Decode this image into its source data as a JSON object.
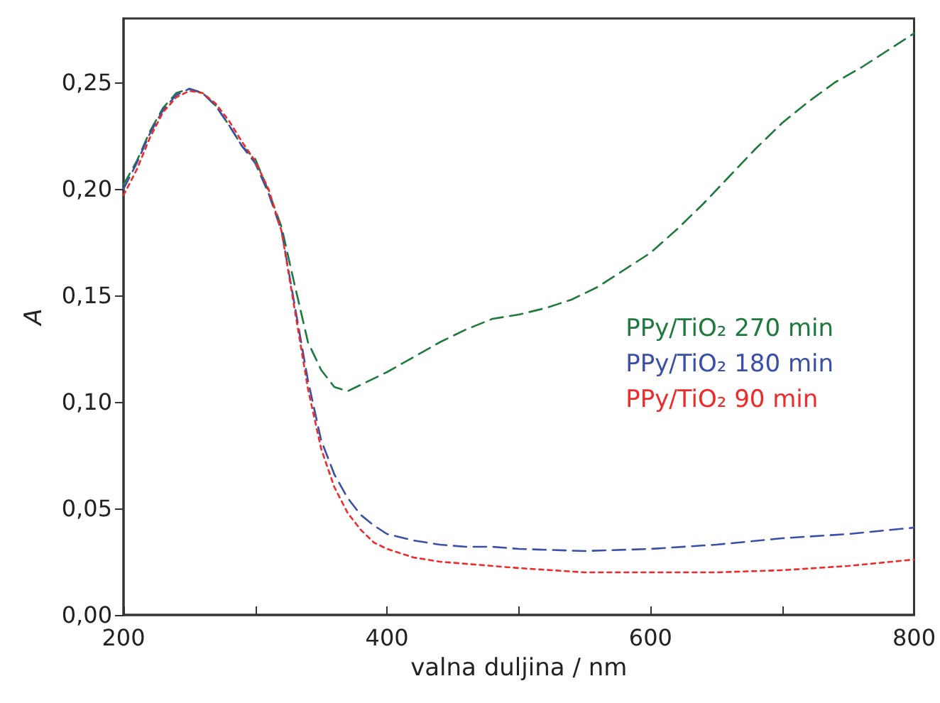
{
  "chart_data": {
    "type": "line",
    "xlabel": "valna duljina / nm",
    "ylabel": "A",
    "xlim": [
      200,
      800
    ],
    "ylim": [
      0,
      0.28
    ],
    "xticks": [
      200,
      {
        "value": 300,
        "label": null
      },
      400,
      {
        "value": 500,
        "label": null
      },
      600,
      {
        "value": 700,
        "label": null
      },
      800
    ],
    "yticks": [
      {
        "value": 0,
        "label": "0,00"
      },
      {
        "value": 0.05,
        "label": "0,05"
      },
      {
        "value": 0.1,
        "label": "0,10"
      },
      {
        "value": 0.15,
        "label": "0,15"
      },
      {
        "value": 0.2,
        "label": "0,20"
      },
      {
        "value": 0.25,
        "label": "0,25"
      }
    ],
    "grid": false,
    "legend": "right",
    "marker": "none",
    "series": [
      {
        "name": "PPy/TiO₂ 270 min",
        "color": "#1e7a3c",
        "line_style": "dashed",
        "x": [
          200,
          210,
          220,
          230,
          240,
          250,
          260,
          270,
          280,
          290,
          300,
          310,
          320,
          328,
          340,
          350,
          360,
          370,
          380,
          400,
          420,
          440,
          460,
          480,
          500,
          520,
          540,
          560,
          580,
          600,
          620,
          640,
          660,
          680,
          700,
          720,
          740,
          760,
          780,
          800
        ],
        "values": [
          0.202,
          0.213,
          0.227,
          0.238,
          0.245,
          0.247,
          0.245,
          0.239,
          0.23,
          0.22,
          0.214,
          0.199,
          0.182,
          0.16,
          0.128,
          0.115,
          0.107,
          0.105,
          0.108,
          0.114,
          0.121,
          0.128,
          0.134,
          0.139,
          0.141,
          0.144,
          0.148,
          0.154,
          0.162,
          0.17,
          0.181,
          0.193,
          0.206,
          0.219,
          0.231,
          0.241,
          0.25,
          0.257,
          0.265,
          0.273
        ]
      },
      {
        "name": "PPy/TiO₂ 180 min",
        "color": "#3b4fa8",
        "line_style": "dashed",
        "x": [
          200,
          210,
          220,
          230,
          240,
          250,
          260,
          270,
          280,
          290,
          300,
          310,
          320,
          330,
          340,
          350,
          360,
          370,
          380,
          390,
          400,
          420,
          440,
          460,
          480,
          500,
          550,
          600,
          650,
          700,
          750,
          800
        ],
        "values": [
          0.2,
          0.212,
          0.226,
          0.237,
          0.244,
          0.247,
          0.245,
          0.239,
          0.23,
          0.22,
          0.212,
          0.198,
          0.18,
          0.145,
          0.11,
          0.082,
          0.066,
          0.055,
          0.047,
          0.042,
          0.038,
          0.035,
          0.033,
          0.032,
          0.032,
          0.031,
          0.03,
          0.031,
          0.033,
          0.036,
          0.038,
          0.041
        ]
      },
      {
        "name": "PPy/TiO₂ 90 min",
        "color": "#ee2a2a",
        "line_style": "dotted",
        "x": [
          200,
          210,
          220,
          230,
          240,
          250,
          260,
          270,
          280,
          290,
          300,
          310,
          320,
          330,
          340,
          350,
          360,
          370,
          380,
          390,
          400,
          420,
          440,
          460,
          480,
          500,
          550,
          600,
          650,
          700,
          750,
          800
        ],
        "values": [
          0.197,
          0.209,
          0.224,
          0.236,
          0.243,
          0.246,
          0.245,
          0.24,
          0.232,
          0.222,
          0.213,
          0.2,
          0.18,
          0.143,
          0.106,
          0.078,
          0.06,
          0.048,
          0.04,
          0.034,
          0.031,
          0.027,
          0.025,
          0.024,
          0.023,
          0.022,
          0.02,
          0.02,
          0.02,
          0.021,
          0.023,
          0.026
        ]
      }
    ]
  }
}
